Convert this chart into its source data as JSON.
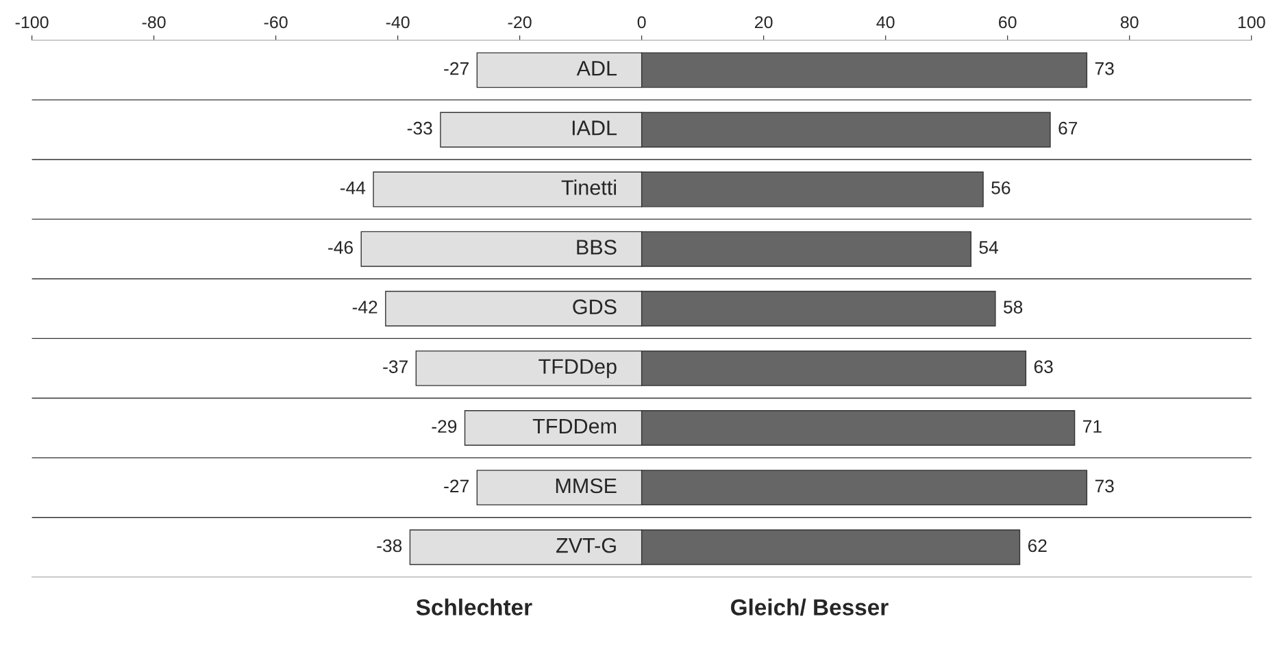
{
  "chart_data": {
    "type": "bar",
    "orientation": "horizontal",
    "stacked": true,
    "categories": [
      "ADL",
      "IADL",
      "Tinetti",
      "BBS",
      "GDS",
      "TFDDep",
      "TFDDem",
      "MMSE",
      "ZVT-G"
    ],
    "series": [
      {
        "name": "Schlechter",
        "color": "#e0e0e0",
        "values": [
          -27,
          -33,
          -44,
          -46,
          -42,
          -37,
          -29,
          -27,
          -38
        ]
      },
      {
        "name": "Gleich/ Besser",
        "color": "#666666",
        "values": [
          73,
          67,
          56,
          54,
          58,
          63,
          71,
          73,
          62
        ]
      }
    ],
    "xlim": [
      -100,
      100
    ],
    "xticks": [
      -100,
      -80,
      -60,
      -40,
      -20,
      0,
      20,
      40,
      60,
      80,
      100
    ],
    "data_labels": true,
    "legend": "bottom"
  }
}
